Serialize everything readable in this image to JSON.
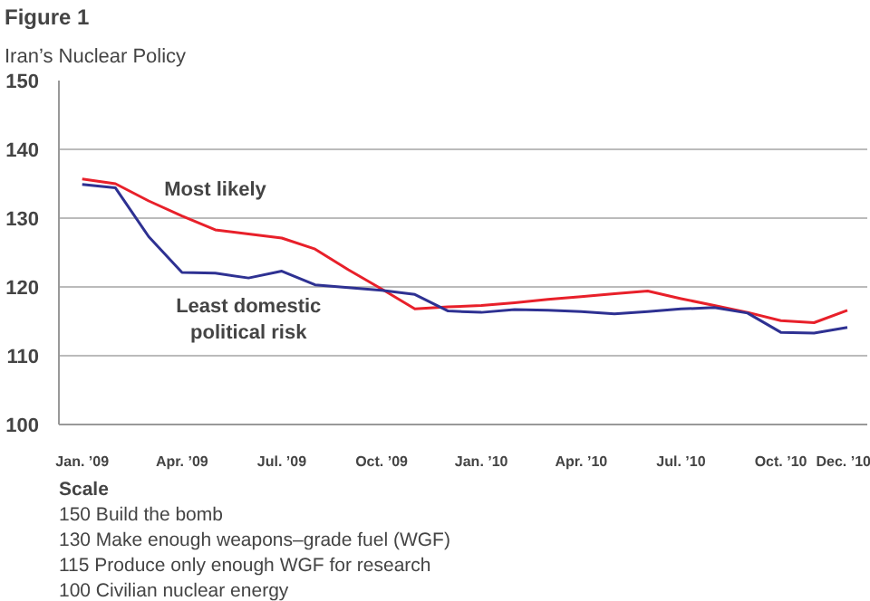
{
  "chart_data": {
    "type": "line",
    "title": "Figure 1",
    "subtitle": "Iran’s Nuclear Policy",
    "categories": [
      "Jan. ’09",
      null,
      null,
      "Apr. ’09",
      null,
      null,
      "Jul. ’09",
      null,
      null,
      "Oct. ’09",
      null,
      null,
      "Jan. ’10",
      null,
      null,
      "Apr. ’10",
      null,
      null,
      "Jul. ’10",
      null,
      null,
      "Oct. ’10",
      null,
      "Dec. ’10"
    ],
    "series": [
      {
        "name": "Most likely",
        "color": "#e8202a",
        "values": [
          135.7,
          135.0,
          132.5,
          130.3,
          128.3,
          127.7,
          127.1,
          125.5,
          122.5,
          119.7,
          116.8,
          117.1,
          117.3,
          117.7,
          118.2,
          118.6,
          119.0,
          119.4,
          118.3,
          117.3,
          116.3,
          115.1,
          114.8,
          116.6
        ]
      },
      {
        "name": "Least domestic political risk",
        "color": "#2e3192",
        "values": [
          134.9,
          134.4,
          127.3,
          122.1,
          122.0,
          121.3,
          122.3,
          120.3,
          119.9,
          119.5,
          118.9,
          116.5,
          116.3,
          116.7,
          116.6,
          116.4,
          116.1,
          116.4,
          116.8,
          117.0,
          116.2,
          113.4,
          113.3,
          114.1
        ]
      }
    ],
    "ylim": [
      100,
      150
    ],
    "yticks": [
      100,
      110,
      120,
      130,
      140,
      150
    ],
    "grid": "y",
    "annotations": [
      "Scale",
      "150 Build the bomb",
      "130 Make enough weapons–grade fuel (WGF)",
      "115 Produce only enough WGF for research",
      "100 Civilian nuclear energy"
    ]
  }
}
